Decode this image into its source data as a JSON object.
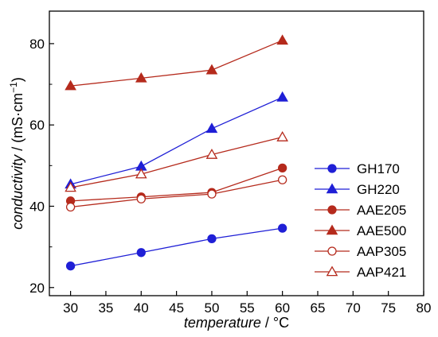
{
  "chart_data": {
    "type": "line",
    "xlabel": {
      "italic": "temperature",
      "unit": " / °C"
    },
    "ylabel": {
      "italic": "conductivity",
      "unit_prefix": " / (mS·cm",
      "unit_sup": "−1",
      "unit_suffix": ")"
    },
    "xlim": [
      27,
      80
    ],
    "ylim": [
      18,
      88
    ],
    "x_ticks": [
      30,
      35,
      40,
      45,
      50,
      55,
      60,
      65,
      70,
      75,
      80
    ],
    "y_ticks": [
      20,
      40,
      60,
      80
    ],
    "grid": false,
    "legend_position": "right",
    "x": [
      30,
      40,
      50,
      60
    ],
    "series": [
      {
        "name": "GH170",
        "values": [
          25.3,
          28.6,
          32.0,
          34.6
        ],
        "color": "#1f1fd6",
        "marker": "circle",
        "filled": true
      },
      {
        "name": "GH220",
        "values": [
          45.4,
          49.8,
          59.1,
          66.8
        ],
        "color": "#1f1fd6",
        "marker": "triangle",
        "filled": true
      },
      {
        "name": "AAE205",
        "values": [
          41.3,
          42.3,
          43.4,
          49.4
        ],
        "color": "#b52a1c",
        "marker": "circle",
        "filled": true
      },
      {
        "name": "AAE500",
        "values": [
          69.6,
          71.5,
          73.5,
          80.8
        ],
        "color": "#b52a1c",
        "marker": "triangle",
        "filled": true
      },
      {
        "name": "AAP305",
        "values": [
          39.8,
          41.8,
          43.0,
          46.5
        ],
        "color": "#b52a1c",
        "marker": "circle",
        "filled": false
      },
      {
        "name": "AAP421",
        "values": [
          44.6,
          47.9,
          52.7,
          57.0
        ],
        "color": "#b52a1c",
        "marker": "triangle",
        "filled": false
      }
    ]
  }
}
